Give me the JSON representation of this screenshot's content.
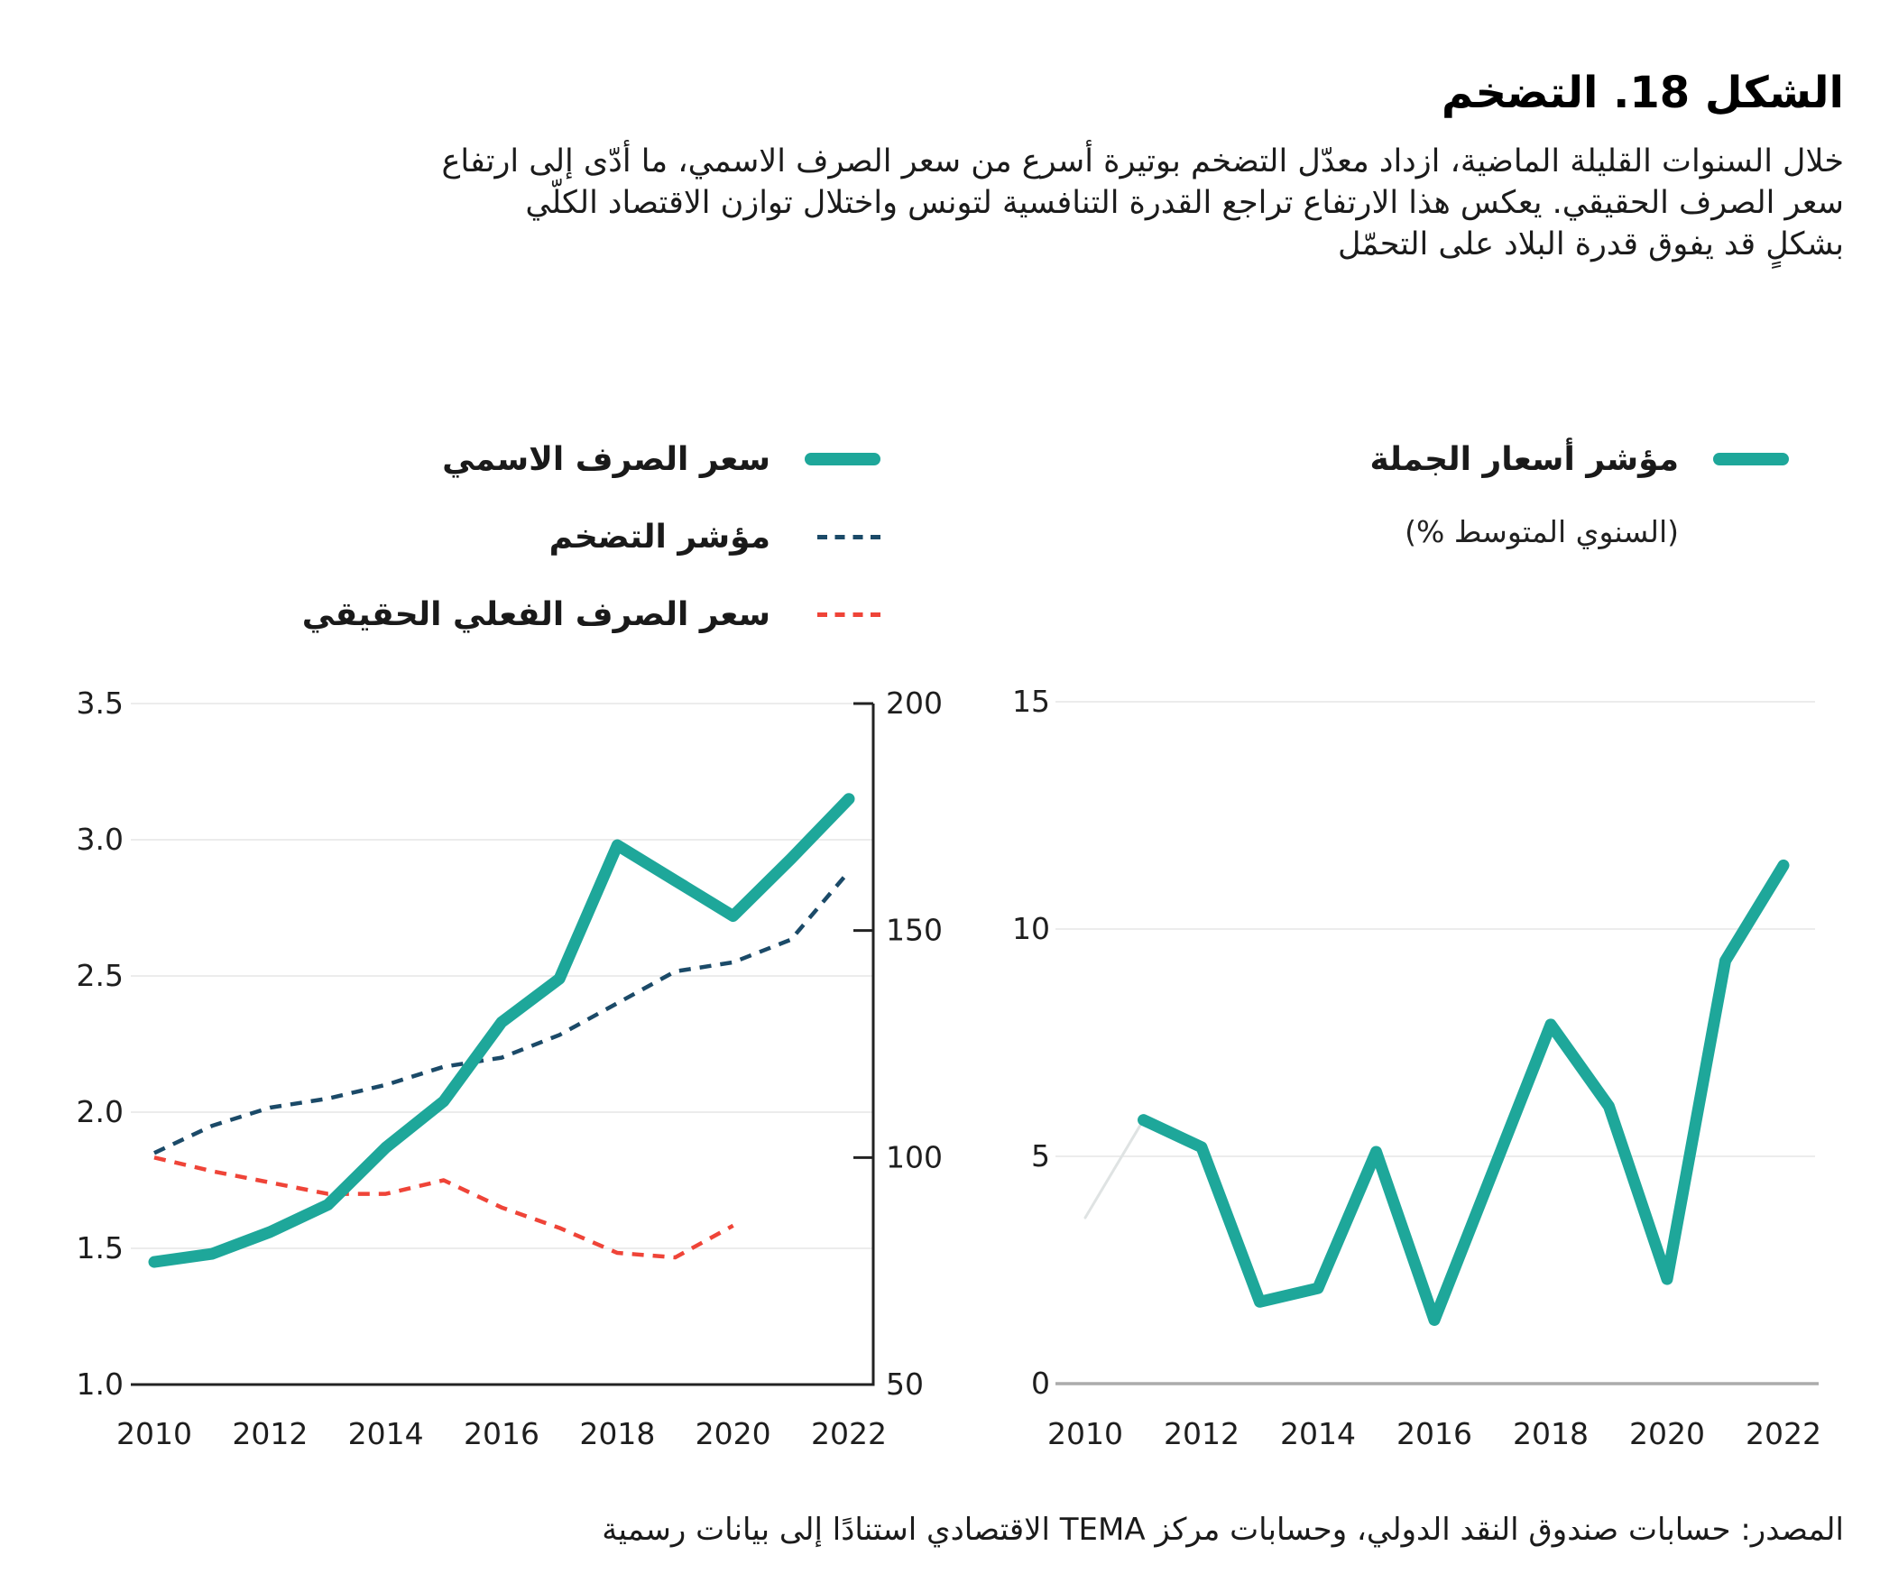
{
  "title": "الشكل 18. التضخم",
  "intro": {
    "lines": [
      "خلال السنوات القليلة الماضية، ازداد معدّل التضخم بوتيرة أسرع من سعر الصرف الاسمي، ما أدّى إلى ارتفاع",
      "سعر الصرف الحقيقي. يعكس هذا الارتفاع تراجع القدرة التنافسية لتونس واختلال توازن الاقتصاد الكلّي",
      "بشكلٍ قد يفوق قدرة البلاد على التحمّل"
    ]
  },
  "legend_left": {
    "items": [
      {
        "label": "سعر الصرف الاسمي",
        "swatch": "solid-teal"
      },
      {
        "label": "مؤشر التضخم",
        "swatch": "dashed-navy"
      },
      {
        "label": "سعر الصرف الفعلي الحقيقي",
        "swatch": "dashed-red"
      }
    ]
  },
  "legend_right": {
    "label": "مؤشر أسعار الجملة",
    "sublabel": "(السنوي المتوسط %)",
    "swatch": "solid-teal"
  },
  "source": "المصدر: حسابات صندوق النقد الدولي،  وحسابات مركز TEMA الاقتصادي استنادًا إلى بيانات رسمية",
  "colors": {
    "teal": "#1EA79A",
    "navy": "#1B4A68",
    "red": "#EF4438",
    "gridline": "#ECECEC",
    "axis_dark": "#222222",
    "axis_gray": "#ABABAB",
    "faint": "#DFE3E3",
    "text": "#1B1B1B"
  },
  "chart_data": [
    {
      "type": "line",
      "x": [
        2010,
        2011,
        2012,
        2013,
        2014,
        2015,
        2016,
        2017,
        2018,
        2019,
        2020,
        2021,
        2022
      ],
      "x_tick_labels": [
        "2010",
        "2012",
        "2014",
        "2016",
        "2018",
        "2020",
        "2022"
      ],
      "left_axis": {
        "range": [
          1.0,
          3.5
        ],
        "tick_values": [
          3.5,
          3.0,
          2.5,
          2.0,
          1.5,
          1.0
        ],
        "tick_labels": [
          "3.5",
          "3.0",
          "2.5",
          "2.0",
          "1.5",
          "1.0"
        ],
        "gridlines": [
          3.5,
          3.0,
          2.5,
          2.0,
          1.5
        ]
      },
      "right_axis": {
        "range": [
          50,
          200
        ],
        "tick_values": [
          200,
          150,
          100,
          50
        ],
        "tick_labels": [
          "200",
          "150",
          "100",
          "50"
        ],
        "tick_marks": [
          200,
          150,
          100
        ]
      },
      "grid": true,
      "legend_position": "top-right",
      "series": [
        {
          "name": "سعر الصرف الاسمي",
          "axis": "left",
          "style": "solid",
          "color_key": "teal",
          "values": [
            1.45,
            1.48,
            1.56,
            1.66,
            1.87,
            2.04,
            2.33,
            2.49,
            2.98,
            2.85,
            2.72,
            2.93,
            3.15
          ]
        },
        {
          "name": "مؤشر التضخم",
          "axis": "right",
          "style": "dashed",
          "color_key": "navy",
          "values": [
            101,
            107,
            111,
            113,
            116,
            120,
            122,
            127,
            134,
            141,
            143,
            148,
            163
          ]
        },
        {
          "name": "سعر الصرف الفعلي الحقيقي",
          "axis": "right",
          "style": "dashed",
          "color_key": "red",
          "values": [
            100,
            97,
            94.5,
            92,
            92,
            95,
            89,
            84.5,
            79,
            78,
            85,
            null,
            null
          ]
        }
      ]
    },
    {
      "type": "line",
      "x": [
        2010,
        2011,
        2012,
        2013,
        2014,
        2015,
        2016,
        2017,
        2018,
        2019,
        2020,
        2021,
        2022
      ],
      "x_tick_labels": [
        "2010",
        "2012",
        "2014",
        "2016",
        "2018",
        "2020",
        "2022"
      ],
      "y_axis": {
        "range": [
          0,
          15
        ],
        "tick_values": [
          15,
          10,
          5,
          0
        ],
        "tick_labels": [
          "15",
          "10",
          "5",
          "0"
        ],
        "gridlines": [
          15,
          10,
          5
        ]
      },
      "grid": true,
      "legend_position": "top-right",
      "series": [
        {
          "name": "faint-lead-segment",
          "style": "solid",
          "color_key": "faint",
          "width": 3,
          "values": [
            3.65,
            5.8,
            null,
            null,
            null,
            null,
            null,
            null,
            null,
            null,
            null,
            null,
            null
          ]
        },
        {
          "name": "مؤشر أسعار الجملة",
          "style": "solid",
          "color_key": "teal",
          "values": [
            null,
            5.8,
            5.2,
            1.8,
            2.1,
            5.1,
            1.4,
            4.65,
            7.9,
            6.1,
            2.3,
            9.3,
            11.4
          ]
        }
      ]
    }
  ]
}
